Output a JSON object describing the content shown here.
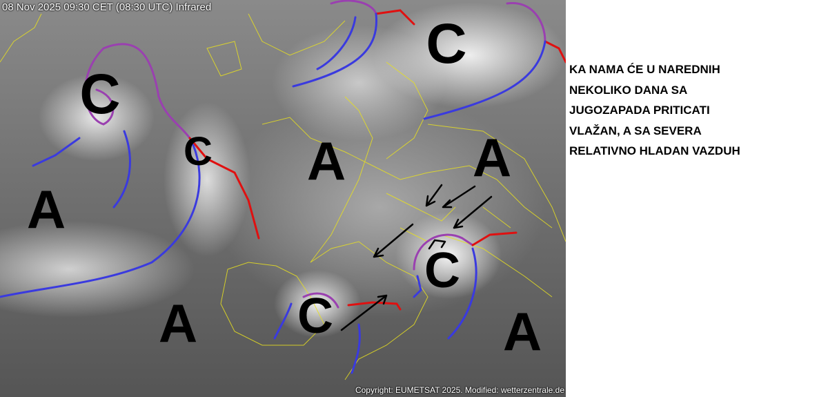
{
  "map": {
    "timestamp": "08 Nov 2025 09:30 CET (08:30 UTC) Infrared",
    "copyright": "Copyright: EUMETSAT 2025. Modified: wetterzentrale.de",
    "pressure_centers": [
      {
        "label": "C",
        "type": "low"
      },
      {
        "label": "C",
        "type": "low"
      },
      {
        "label": "C",
        "type": "low"
      },
      {
        "label": "C",
        "type": "low"
      },
      {
        "label": "C",
        "type": "low"
      },
      {
        "label": "A",
        "type": "high"
      },
      {
        "label": "A",
        "type": "high"
      },
      {
        "label": "A",
        "type": "high"
      },
      {
        "label": "A",
        "type": "high"
      },
      {
        "label": "A",
        "type": "high"
      }
    ],
    "colors": {
      "cold_front": "#3a3adf",
      "warm_front": "#e01010",
      "occlusion": "#9a40b0",
      "borders": "#e8e020"
    }
  },
  "annotation": {
    "lines": [
      "KA NAMA ĆE U NAREDNIH",
      "NEKOLIKO DANA SA",
      "JUGOZAPADA PRITICATI",
      "VLAŽAN, A SA SEVERA",
      "RELATIVNO HLADAN VAZDUH"
    ]
  }
}
